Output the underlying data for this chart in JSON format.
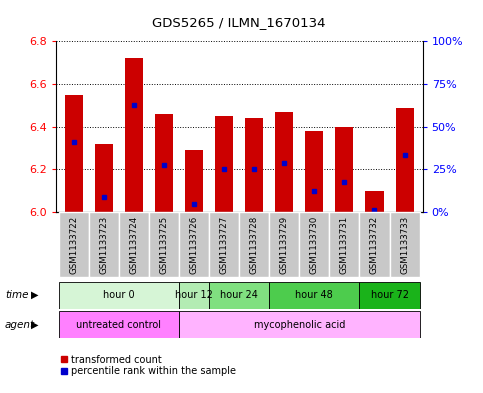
{
  "title": "GDS5265 / ILMN_1670134",
  "samples": [
    "GSM1133722",
    "GSM1133723",
    "GSM1133724",
    "GSM1133725",
    "GSM1133726",
    "GSM1133727",
    "GSM1133728",
    "GSM1133729",
    "GSM1133730",
    "GSM1133731",
    "GSM1133732",
    "GSM1133733"
  ],
  "bar_values": [
    6.55,
    6.32,
    6.72,
    6.46,
    6.29,
    6.45,
    6.44,
    6.47,
    6.38,
    6.4,
    6.1,
    6.49
  ],
  "percentile_values": [
    6.33,
    6.07,
    6.5,
    6.22,
    6.04,
    6.2,
    6.2,
    6.23,
    6.1,
    6.14,
    6.01,
    6.27
  ],
  "ylim_left": [
    6.0,
    6.8
  ],
  "ylim_right": [
    0,
    100
  ],
  "yticks_left": [
    6.0,
    6.2,
    6.4,
    6.6,
    6.8
  ],
  "yticks_right": [
    0,
    25,
    50,
    75,
    100
  ],
  "ytick_labels_right": [
    "0%",
    "25%",
    "50%",
    "75%",
    "100%"
  ],
  "bar_color": "#cc0000",
  "percentile_color": "#0000cc",
  "bar_width": 0.6,
  "background_color": "#ffffff",
  "grid_color": "#000000",
  "time_groups": [
    {
      "label": "hour 0",
      "start": 0,
      "end": 3,
      "color": "#d6f5d6"
    },
    {
      "label": "hour 12",
      "start": 4,
      "end": 4,
      "color": "#b3ecb3"
    },
    {
      "label": "hour 24",
      "start": 5,
      "end": 6,
      "color": "#80e080"
    },
    {
      "label": "hour 48",
      "start": 7,
      "end": 9,
      "color": "#4dcc4d"
    },
    {
      "label": "hour 72",
      "start": 10,
      "end": 11,
      "color": "#1ab31a"
    }
  ],
  "agent_groups": [
    {
      "label": "untreated control",
      "start": 0,
      "end": 3,
      "color": "#ff80ff"
    },
    {
      "label": "mycophenolic acid",
      "start": 4,
      "end": 11,
      "color": "#ffb3ff"
    }
  ],
  "legend_red_label": "transformed count",
  "legend_blue_label": "percentile rank within the sample",
  "time_label": "time",
  "agent_label": "agent",
  "sample_label_color": "#c8c8c8",
  "sample_bg_color": "#c8c8c8"
}
